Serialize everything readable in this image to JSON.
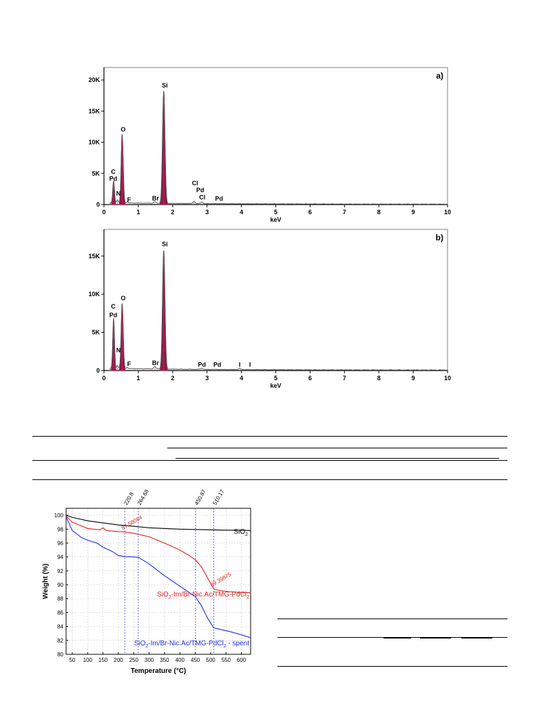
{
  "chart_data": [
    {
      "type": "line",
      "panel_label": "a)",
      "xlabel": "keV",
      "xlim": [
        0,
        10
      ],
      "ylim": [
        0,
        22000
      ],
      "x_ticks": [
        "0",
        "1",
        "2",
        "3",
        "4",
        "5",
        "6",
        "7",
        "8",
        "9",
        "10"
      ],
      "y_ticks": [
        {
          "v": 0,
          "t": "0"
        },
        {
          "v": 5000,
          "t": "5K"
        },
        {
          "v": 10000,
          "t": "10K"
        },
        {
          "v": 15000,
          "t": "15K"
        },
        {
          "v": 20000,
          "t": "20K"
        }
      ],
      "peaks": [
        {
          "x": 0.28,
          "y": 3500,
          "w": 0.025
        },
        {
          "x": 0.39,
          "y": 500,
          "w": 0.02
        },
        {
          "x": 0.53,
          "y": 11000,
          "w": 0.03
        },
        {
          "x": 0.68,
          "y": 200,
          "w": 0.02
        },
        {
          "x": 1.48,
          "y": 250,
          "w": 0.03
        },
        {
          "x": 1.74,
          "y": 18000,
          "w": 0.035
        },
        {
          "x": 2.62,
          "y": 350,
          "w": 0.03
        },
        {
          "x": 2.84,
          "y": 250,
          "w": 0.03
        }
      ],
      "annotations": [
        {
          "x": 0.27,
          "y": 4900,
          "text": "C"
        },
        {
          "x": 0.27,
          "y": 3800,
          "text": "Pd"
        },
        {
          "x": 0.42,
          "y": 1450,
          "text": "N"
        },
        {
          "x": 0.56,
          "y": 11700,
          "text": "O"
        },
        {
          "x": 0.73,
          "y": 450,
          "text": "F"
        },
        {
          "x": 1.5,
          "y": 650,
          "text": "Br"
        },
        {
          "x": 1.77,
          "y": 18800,
          "text": "Si"
        },
        {
          "x": 2.65,
          "y": 3100,
          "text": "Cl"
        },
        {
          "x": 2.8,
          "y": 2000,
          "text": "Pd"
        },
        {
          "x": 2.86,
          "y": 850,
          "text": "Cl"
        },
        {
          "x": 3.35,
          "y": 600,
          "text": "Pd"
        }
      ]
    },
    {
      "type": "line",
      "panel_label": "b)",
      "xlabel": "keV",
      "xlim": [
        0,
        10
      ],
      "ylim": [
        0,
        18500
      ],
      "x_ticks": [
        "0",
        "1",
        "2",
        "3",
        "4",
        "5",
        "6",
        "7",
        "8",
        "9",
        "10"
      ],
      "y_ticks": [
        {
          "v": 0,
          "t": "0"
        },
        {
          "v": 5000,
          "t": "5K"
        },
        {
          "v": 10000,
          "t": "10K"
        },
        {
          "v": 15000,
          "t": "15K"
        }
      ],
      "peaks": [
        {
          "x": 0.28,
          "y": 6500,
          "w": 0.025
        },
        {
          "x": 0.39,
          "y": 400,
          "w": 0.02
        },
        {
          "x": 0.53,
          "y": 8500,
          "w": 0.03
        },
        {
          "x": 0.68,
          "y": 150,
          "w": 0.02
        },
        {
          "x": 1.48,
          "y": 300,
          "w": 0.03
        },
        {
          "x": 1.74,
          "y": 15500,
          "w": 0.035
        },
        {
          "x": 2.84,
          "y": 150,
          "w": 0.03
        },
        {
          "x": 3.95,
          "y": 150,
          "w": 0.03
        }
      ],
      "annotations": [
        {
          "x": 0.27,
          "y": 8100,
          "text": "C"
        },
        {
          "x": 0.27,
          "y": 7000,
          "text": "Pd"
        },
        {
          "x": 0.42,
          "y": 2400,
          "text": "N"
        },
        {
          "x": 0.56,
          "y": 9200,
          "text": "O"
        },
        {
          "x": 0.73,
          "y": 600,
          "text": "F"
        },
        {
          "x": 1.5,
          "y": 700,
          "text": "Br"
        },
        {
          "x": 1.77,
          "y": 16300,
          "text": "Si"
        },
        {
          "x": 2.85,
          "y": 500,
          "text": "Pd"
        },
        {
          "x": 3.3,
          "y": 500,
          "text": "Pd"
        },
        {
          "x": 3.95,
          "y": 500,
          "text": "I"
        },
        {
          "x": 4.25,
          "y": 500,
          "text": "I"
        }
      ]
    },
    {
      "type": "line",
      "xlabel": "Temperature (°C)",
      "ylabel": "Weight (%)",
      "xlim": [
        30,
        630
      ],
      "ylim": [
        80,
        101
      ],
      "x_ticks": [
        50,
        100,
        150,
        200,
        250,
        300,
        350,
        400,
        450,
        500,
        550,
        600
      ],
      "y_ticks": [
        80,
        82,
        84,
        86,
        88,
        90,
        92,
        94,
        96,
        98,
        100
      ],
      "grid": true,
      "vlines": [
        {
          "x": 220.8,
          "label": "220.8"
        },
        {
          "x": 264.68,
          "label": "264.68"
        },
        {
          "x": 450.87,
          "label": "450.87"
        },
        {
          "x": 510.17,
          "label": "510.17"
        }
      ],
      "series": [
        {
          "label_parts": [
            "SiO",
            "2",
            ""
          ],
          "color": "#000000",
          "x": [
            30,
            50,
            100,
            150,
            200,
            250,
            300,
            350,
            400,
            450,
            500,
            550,
            600,
            630
          ],
          "y": [
            100,
            99.7,
            99.2,
            98.9,
            98.6,
            98.4,
            98.2,
            98.1,
            98.0,
            97.95,
            97.9,
            97.85,
            97.82,
            97.8
          ]
        },
        {
          "label_parts": [
            "SiO",
            "2",
            "-Im/Br-Nic.Ac/TMG-PdCl",
            "2",
            ""
          ],
          "color": "#e3201b",
          "x": [
            30,
            50,
            100,
            140,
            150,
            160,
            200,
            220,
            250,
            300,
            350,
            400,
            430,
            450,
            470,
            490,
            510,
            530,
            560,
            600,
            630
          ],
          "y": [
            99.9,
            99.0,
            98.1,
            97.9,
            98.2,
            97.8,
            97.65,
            97.6,
            97.4,
            96.9,
            96.0,
            95.0,
            94.2,
            93.6,
            92.6,
            91.0,
            89.4,
            89.15,
            89.0,
            88.9,
            88.85
          ]
        },
        {
          "label_parts": [
            "SiO",
            "2",
            "-Im/Br-Nic.Ac/TMG-PdCl",
            "2",
            " - spent"
          ],
          "color": "#1b2ee3",
          "x": [
            30,
            50,
            80,
            100,
            130,
            150,
            160,
            180,
            200,
            220,
            250,
            265,
            300,
            350,
            400,
            450,
            470,
            490,
            510,
            530,
            560,
            600,
            630
          ],
          "y": [
            99.8,
            97.8,
            96.8,
            96.4,
            96.0,
            95.4,
            95.2,
            94.8,
            94.2,
            94.05,
            94.0,
            93.95,
            93.0,
            91.3,
            89.8,
            88.3,
            87.0,
            85.2,
            83.8,
            83.6,
            83.3,
            82.8,
            82.4
          ]
        }
      ],
      "point_labels": [
        {
          "x": 220.8,
          "y": 97.6,
          "text": "97.58084",
          "color": "#e3201b"
        },
        {
          "x": 510.17,
          "y": 89.4,
          "text": "89.39875",
          "color": "#e3201b"
        }
      ]
    }
  ]
}
